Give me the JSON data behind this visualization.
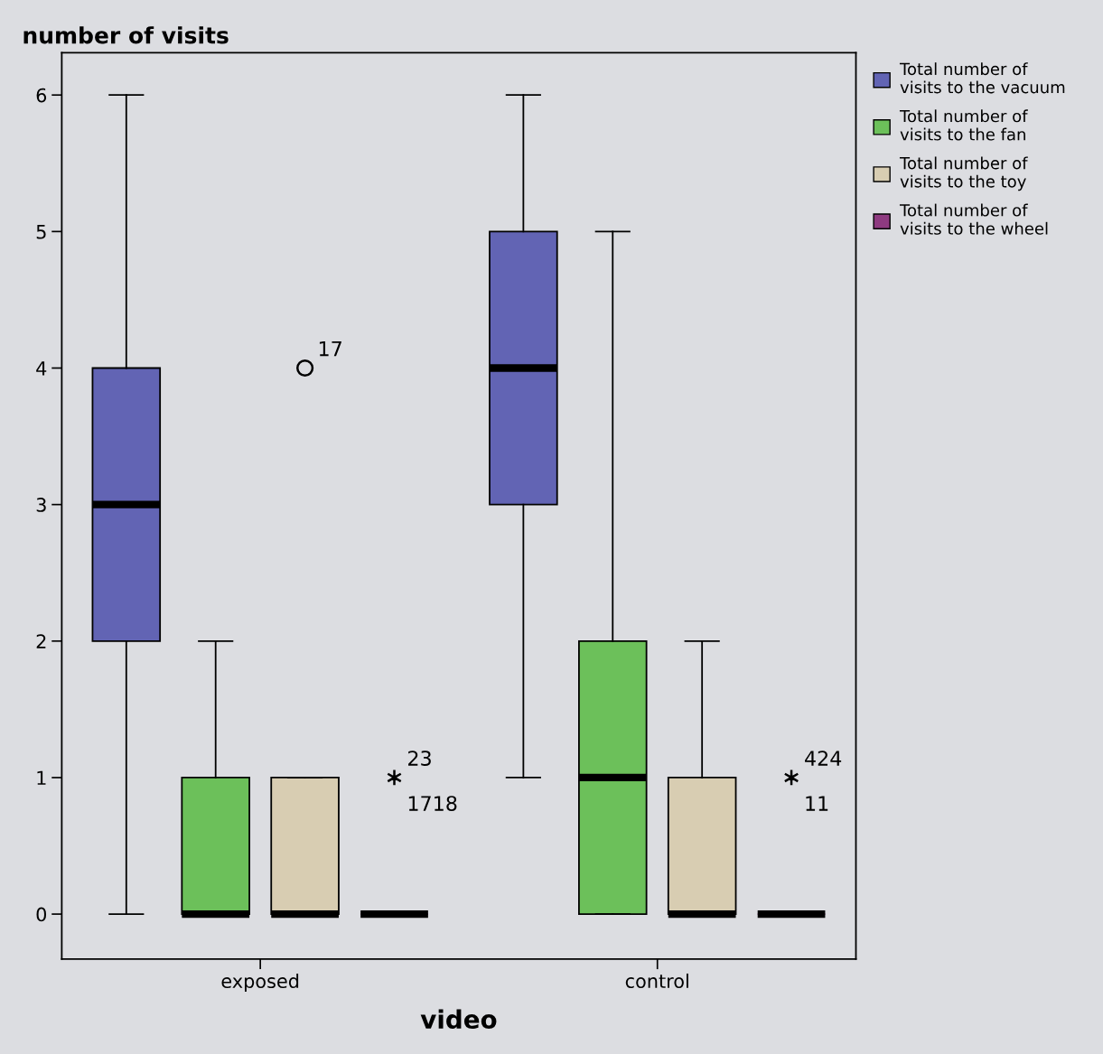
{
  "chart_data": {
    "type": "box",
    "xlabel": "video",
    "ylabel": "number of visits",
    "categories": [
      "exposed",
      "control"
    ],
    "ylim": [
      -0.33,
      6.31
    ],
    "yticks": [
      0,
      1,
      2,
      3,
      4,
      5,
      6
    ],
    "grid": false,
    "legend": "top right",
    "series": [
      {
        "name": "Total number of visits to the vacuum",
        "color": "#6264b4",
        "boxes": [
          {
            "low": 0,
            "q1": 2,
            "median": 3,
            "q3": 4,
            "high": 6
          },
          {
            "low": 1,
            "q1": 3,
            "median": 4,
            "q3": 5,
            "high": 6
          }
        ]
      },
      {
        "name": "Total number of visits to the fan",
        "color": "#6cc05a",
        "boxes": [
          {
            "low": 0,
            "q1": 0,
            "median": 0,
            "q3": 1,
            "high": 2
          },
          {
            "low": 0,
            "q1": 0,
            "median": 1,
            "q3": 2,
            "high": 5
          }
        ]
      },
      {
        "name": "Total number of visits to the toy",
        "color": "#d8cdb2",
        "marker": "circle",
        "boxes": [
          {
            "low": 0,
            "q1": 0,
            "median": 0,
            "q3": 1,
            "high": 1,
            "outliers": [
              4
            ]
          },
          {
            "low": 0,
            "q1": 0,
            "median": 0,
            "q3": 1,
            "high": 2
          }
        ]
      },
      {
        "name": "Total number of visits to the wheel",
        "color": "#8e3a80",
        "marker": "star",
        "boxes": [
          {
            "low": 0,
            "q1": 0,
            "median": 0,
            "q3": 0,
            "high": 0,
            "outliers": [
              1
            ]
          },
          {
            "low": 0,
            "q1": 0,
            "median": 0,
            "q3": 0,
            "high": 0,
            "outliers": [
              1
            ]
          }
        ]
      }
    ],
    "annotations": [
      "17",
      "23",
      "1718",
      "424",
      "11"
    ]
  }
}
